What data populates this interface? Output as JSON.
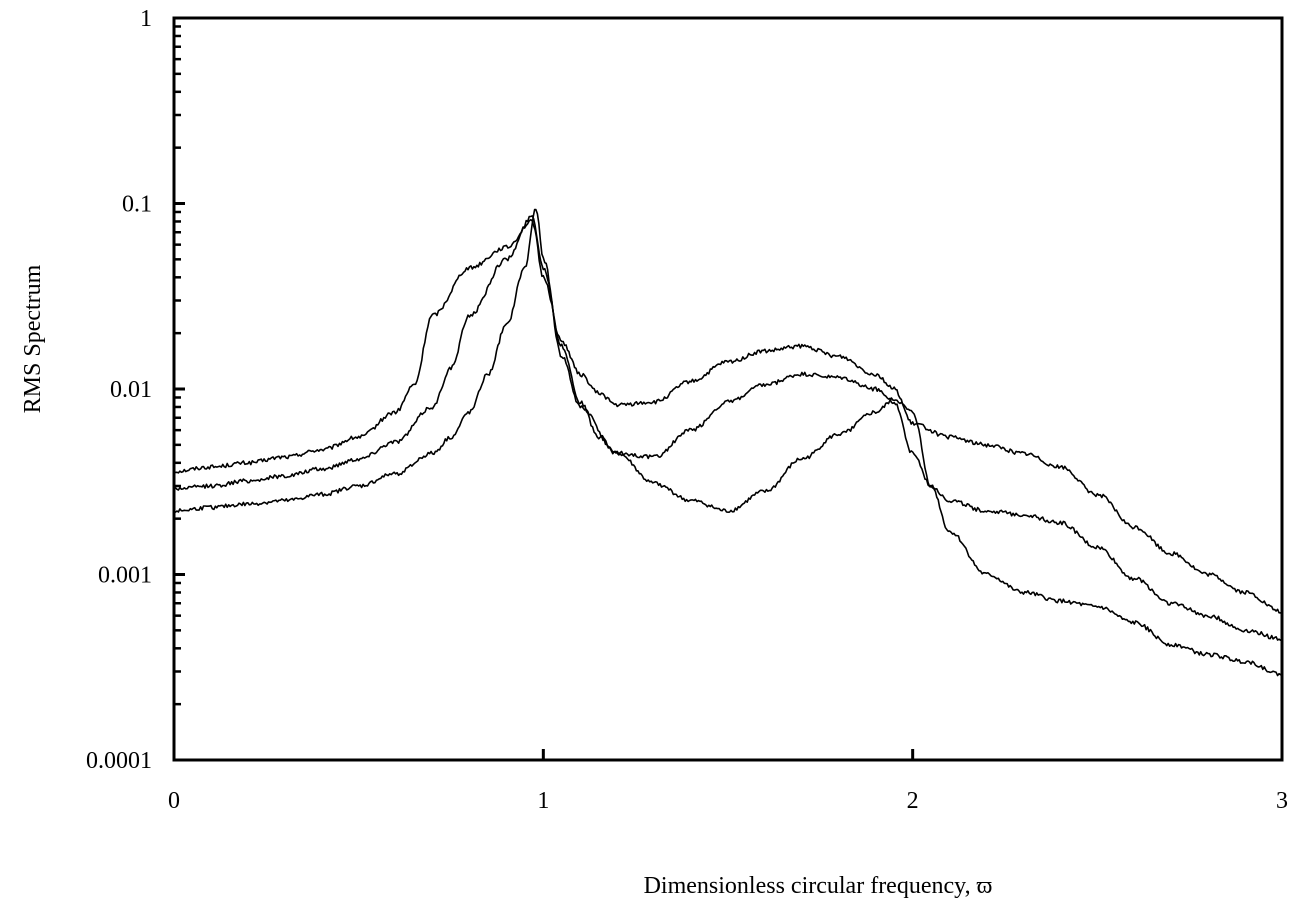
{
  "chart_data": {
    "type": "line",
    "title": "",
    "xlabel": "Dimensionless circular frequency, ϖ",
    "ylabel": "RMS Spectrum",
    "x_scale": "linear",
    "y_scale": "log",
    "xlim": [
      0,
      3
    ],
    "ylim": [
      0.0001,
      1
    ],
    "x_ticks": [
      0,
      1,
      2,
      3
    ],
    "x_tick_labels": [
      "0",
      "1",
      "2",
      "3"
    ],
    "y_ticks": [
      0.0001,
      0.001,
      0.01,
      0.1,
      1
    ],
    "y_tick_labels": [
      "0.0001",
      "0.001",
      "0.01",
      "0.1",
      "1"
    ],
    "grid": false,
    "legend": "none",
    "line_color": "#000000",
    "series": [
      {
        "x": [
          0,
          0.1,
          0.2,
          0.3,
          0.4,
          0.5,
          0.6,
          0.65,
          0.7,
          0.8,
          0.9,
          0.97,
          1.0,
          1.05,
          1.1,
          1.15,
          1.2,
          1.3,
          1.4,
          1.5,
          1.6,
          1.7,
          1.8,
          1.9,
          1.95,
          2.0,
          2.1,
          2.2,
          2.3,
          2.4,
          2.5,
          2.6,
          2.7,
          2.8,
          2.9,
          3.0
        ],
        "y": [
          0.0036,
          0.0038,
          0.004,
          0.0043,
          0.0047,
          0.0055,
          0.0075,
          0.0105,
          0.025,
          0.045,
          0.058,
          0.08,
          0.04,
          0.018,
          0.012,
          0.0095,
          0.0082,
          0.0085,
          0.011,
          0.014,
          0.016,
          0.017,
          0.015,
          0.012,
          0.01,
          0.0065,
          0.0055,
          0.005,
          0.0045,
          0.0038,
          0.0027,
          0.0018,
          0.0013,
          0.001,
          0.0008,
          0.00063
        ]
      },
      {
        "x": [
          0,
          0.1,
          0.2,
          0.3,
          0.4,
          0.5,
          0.6,
          0.7,
          0.75,
          0.8,
          0.9,
          0.97,
          1.0,
          1.05,
          1.1,
          1.15,
          1.2,
          1.3,
          1.4,
          1.5,
          1.6,
          1.7,
          1.8,
          1.9,
          1.95,
          2.0,
          2.05,
          2.1,
          2.2,
          2.3,
          2.4,
          2.5,
          2.6,
          2.7,
          2.8,
          2.9,
          3.0
        ],
        "y": [
          0.0029,
          0.003,
          0.0032,
          0.0034,
          0.0037,
          0.0042,
          0.0052,
          0.008,
          0.013,
          0.025,
          0.05,
          0.085,
          0.045,
          0.017,
          0.0085,
          0.0055,
          0.0045,
          0.0043,
          0.006,
          0.0085,
          0.0105,
          0.012,
          0.0115,
          0.01,
          0.0085,
          0.0045,
          0.003,
          0.0025,
          0.0022,
          0.0021,
          0.0019,
          0.0014,
          0.00095,
          0.0007,
          0.0006,
          0.0005,
          0.00045
        ]
      },
      {
        "x": [
          0,
          0.1,
          0.2,
          0.3,
          0.4,
          0.5,
          0.6,
          0.7,
          0.75,
          0.8,
          0.85,
          0.9,
          0.95,
          0.98,
          1.0,
          1.05,
          1.1,
          1.2,
          1.3,
          1.4,
          1.5,
          1.6,
          1.7,
          1.8,
          1.9,
          1.95,
          2.0,
          2.05,
          2.1,
          2.2,
          2.3,
          2.4,
          2.5,
          2.6,
          2.7,
          2.8,
          2.9,
          3.0
        ],
        "y": [
          0.0022,
          0.0023,
          0.0024,
          0.0025,
          0.0027,
          0.003,
          0.0035,
          0.0045,
          0.0055,
          0.0075,
          0.012,
          0.022,
          0.045,
          0.095,
          0.05,
          0.015,
          0.008,
          0.0045,
          0.0031,
          0.0025,
          0.0022,
          0.0028,
          0.0042,
          0.0057,
          0.0075,
          0.0088,
          0.0075,
          0.003,
          0.0017,
          0.001,
          0.0008,
          0.00072,
          0.00067,
          0.00055,
          0.00042,
          0.00037,
          0.00034,
          0.00029
        ]
      }
    ]
  }
}
